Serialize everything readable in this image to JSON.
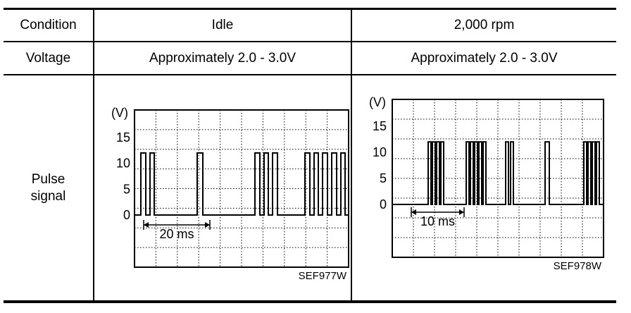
{
  "table": {
    "headers": {
      "condition": "Condition",
      "idle": "Idle",
      "rpm2000": "2,000 rpm"
    },
    "voltage_row": {
      "label": "Voltage",
      "idle": "Approximately 2.0 - 3.0V",
      "rpm2000": "Approximately 2.0 - 3.0V"
    },
    "pulse_row": {
      "label_line1": "Pulse",
      "label_line2": "signal"
    }
  },
  "chart_data": [
    {
      "type": "line",
      "title": "",
      "ylabel": "(V)",
      "ylim": [
        0,
        15
      ],
      "y_ticks": [
        "15",
        "10",
        "5",
        "0"
      ],
      "time_scale_label": "20 ms",
      "figure_code": "SEF977W",
      "pulse_high_voltage": 12,
      "pulse_low_voltage": 0
    },
    {
      "type": "line",
      "title": "",
      "ylabel": "(V)",
      "ylim": [
        0,
        15
      ],
      "y_ticks": [
        "15",
        "10",
        "5",
        "0"
      ],
      "time_scale_label": "10 ms",
      "figure_code": "SEF978W",
      "pulse_high_voltage": 12,
      "pulse_low_voltage": 0
    }
  ]
}
